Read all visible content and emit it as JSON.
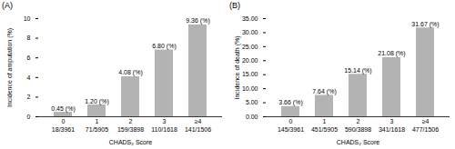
{
  "chart_data": [
    {
      "type": "bar",
      "title": "(A)",
      "categories": [
        "0",
        "1",
        "2",
        "3",
        "≥4"
      ],
      "counts": [
        "18/3961",
        "71/5905",
        "159/3898",
        "110/1618",
        "141/1506"
      ],
      "values": [
        0.45,
        1.2,
        4.08,
        6.8,
        9.36
      ],
      "value_labels": [
        "0.45 (%)",
        "1.20 (%)",
        "4.08 (%)",
        "6.80 (%)",
        "9.36 (%)"
      ],
      "data_labels": true,
      "x_label": "CHADS₂ Score",
      "y_label": "Incidence of amputation (%)",
      "color": "#b3b3b3",
      "ylim": [
        0,
        10
      ],
      "yticks": [
        0,
        2,
        4,
        6,
        8,
        10
      ]
    },
    {
      "type": "bar",
      "title": "(B)",
      "categories": [
        "0",
        "1",
        "2",
        "3",
        "≥4"
      ],
      "counts": [
        "145/3961",
        "451/5905",
        "590/3898",
        "341/1618",
        "477/1506"
      ],
      "values": [
        3.66,
        7.64,
        15.14,
        21.08,
        31.67
      ],
      "value_labels": [
        "3.66 (%)",
        "7.64 (%)",
        "15.14 (%)",
        "21.08 (%)",
        "31.67 (%)"
      ],
      "data_labels": true,
      "x_label": "CHADS₂ Score",
      "y_label": "Incidence of death (%)",
      "color": "#b3b3b3",
      "ylim": [
        0,
        35
      ],
      "yticks": [
        {
          "value": 0,
          "label": "0.00"
        },
        {
          "value": 5,
          "label": "5.00"
        },
        {
          "value": 10,
          "label": "10.00"
        },
        {
          "value": 15,
          "label": "15.00"
        },
        {
          "value": 20,
          "label": "20.00"
        },
        {
          "value": 25,
          "label": "25.00"
        },
        {
          "value": 30,
          "label": "30.00"
        },
        {
          "value": 35,
          "label": "35.00"
        }
      ]
    }
  ]
}
